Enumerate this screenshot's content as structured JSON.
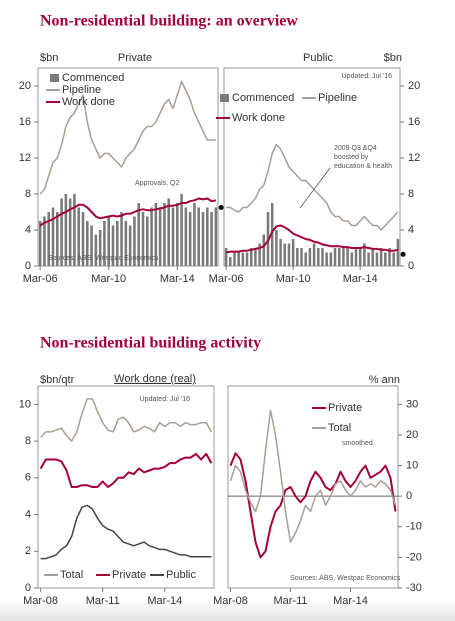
{
  "headings": [
    "Non-residential building: an overview",
    "Non-residential building activity"
  ],
  "chart_data": [
    {
      "type": "combo",
      "title": "Private",
      "y_label": "$bn",
      "axis_side": "left",
      "legend": "top-left",
      "source": "Sources: ABS, Westpac Economics",
      "categories": [
        "Mar-06",
        null,
        null,
        null,
        null,
        null,
        null,
        null,
        null,
        null,
        null,
        null,
        null,
        null,
        null,
        null,
        "Mar-10",
        null,
        null,
        null,
        null,
        null,
        null,
        null,
        null,
        null,
        null,
        null,
        null,
        null,
        null,
        null,
        "Mar-14",
        null,
        null,
        null,
        null,
        null,
        null,
        null,
        null,
        null
      ],
      "series": [
        {
          "name": "Commenced",
          "kind": "bar",
          "color": "#7a7a7a",
          "values": [
            5,
            5.5,
            6,
            6.5,
            6,
            7.5,
            8,
            7.5,
            8,
            6.5,
            6,
            5,
            4.5,
            3.5,
            4,
            5,
            5.5,
            4.5,
            5,
            6,
            5,
            4.5,
            5.5,
            7,
            6,
            5.5,
            6.5,
            7,
            6.5,
            7,
            7.5,
            6.5,
            7,
            8,
            6.5,
            6,
            7,
            6.5,
            6,
            6.5,
            6,
            6.5
          ]
        },
        {
          "name": "Pipeline",
          "kind": "line",
          "color": "#a89f94",
          "values": [
            8,
            8.5,
            10,
            11.5,
            12,
            13.5,
            15.5,
            16.5,
            17,
            18,
            19,
            16,
            14,
            13,
            12,
            12.5,
            12.5,
            12,
            11.5,
            11,
            12,
            12.5,
            13,
            14,
            15,
            15.5,
            15.5,
            16,
            17,
            18,
            18.5,
            17.5,
            19,
            20.5,
            19.5,
            18.5,
            17,
            16,
            15,
            14,
            14,
            14
          ]
        },
        {
          "name": "Work done",
          "kind": "line",
          "color": "#a3003c",
          "values": [
            4.5,
            4.8,
            5,
            5.2,
            5.5,
            5.8,
            6,
            6.3,
            6.5,
            6.8,
            6.8,
            6.5,
            6,
            5.5,
            5.3,
            5.4,
            5.5,
            5.6,
            5.5,
            5.6,
            5.8,
            5.8,
            6,
            6.2,
            6.3,
            6.2,
            6.2,
            6.3,
            6.4,
            6.5,
            6.7,
            6.7,
            6.8,
            7,
            7,
            7.2,
            7.3,
            7.5,
            7.4,
            7.5,
            7.2,
            7.3
          ]
        }
      ],
      "annotations": [
        {
          "text": [
            "Approvals, Q2"
          ],
          "value": 6.5
        }
      ],
      "ylim": [
        0,
        22
      ],
      "yticks": [
        0,
        4,
        8,
        12,
        16,
        20
      ]
    },
    {
      "type": "combo",
      "title": "Public",
      "y_label": "$bn",
      "axis_side": "right",
      "legend": "top",
      "note": "Updated: Jul '16",
      "categories": [
        "Mar-06",
        null,
        null,
        null,
        null,
        null,
        null,
        null,
        null,
        null,
        null,
        null,
        null,
        null,
        null,
        null,
        "Mar-10",
        null,
        null,
        null,
        null,
        null,
        null,
        null,
        null,
        null,
        null,
        null,
        null,
        null,
        null,
        null,
        "Mar-14",
        null,
        null,
        null,
        null,
        null,
        null,
        null,
        null,
        null
      ],
      "series": [
        {
          "name": "Commenced",
          "kind": "bar",
          "color": "#7a7a7a",
          "values": [
            2,
            1,
            1.5,
            1.5,
            1.5,
            1.5,
            2,
            2,
            2.5,
            3.5,
            6,
            7,
            4,
            3,
            2.5,
            2.5,
            3,
            2,
            2,
            1.5,
            2,
            2.5,
            2,
            2,
            1.5,
            1.5,
            2,
            2,
            2,
            2,
            1.5,
            2,
            2,
            2.5,
            1.5,
            2,
            1.5,
            2,
            1.5,
            2,
            1.5,
            3
          ]
        },
        {
          "name": "Pipeline",
          "kind": "line",
          "color": "#a89f94",
          "values": [
            6.5,
            6.5,
            6.2,
            6,
            6.5,
            6.5,
            7,
            7.5,
            8.5,
            9,
            10.5,
            12.5,
            13.5,
            13,
            12,
            11,
            10.5,
            10,
            9.5,
            9.5,
            9,
            8.5,
            8,
            7.5,
            7,
            6,
            5.5,
            5.5,
            5,
            5,
            4.5,
            4.5,
            5,
            5.5,
            5,
            4.5,
            4.5,
            4,
            4.5,
            5,
            5.5,
            6
          ]
        },
        {
          "name": "Work done",
          "kind": "line",
          "color": "#a3003c",
          "values": [
            1.5,
            1.6,
            1.6,
            1.6,
            1.7,
            1.7,
            1.8,
            1.9,
            2,
            2.2,
            2.8,
            3.8,
            4.4,
            4.5,
            4.3,
            4,
            3.6,
            3.4,
            3.2,
            3,
            2.9,
            2.7,
            2.6,
            2.4,
            2.3,
            2.2,
            2.2,
            2.2,
            2.1,
            2.1,
            2,
            2,
            2,
            2.1,
            2,
            1.9,
            1.9,
            1.8,
            1.8,
            1.7,
            1.7,
            1.8
          ]
        }
      ],
      "annotations": [
        {
          "text": [
            "2009 Q3 &Q4",
            "boosted by",
            "education & health"
          ]
        },
        {
          "value": 1.3
        }
      ],
      "ylim": [
        0,
        22
      ],
      "yticks": [
        0,
        4,
        8,
        12,
        16,
        20
      ]
    },
    {
      "type": "line",
      "title": "Work done (real)",
      "y_label": "$bn/qtr",
      "axis_side": "left",
      "legend": "bottom",
      "note": "Updated: Jul '16",
      "categories": [
        "Mar-08",
        null,
        null,
        null,
        null,
        null,
        null,
        null,
        null,
        null,
        null,
        null,
        "Mar-11",
        null,
        null,
        null,
        null,
        null,
        null,
        null,
        null,
        null,
        null,
        null,
        "Mar-14",
        null,
        null,
        null,
        null,
        null,
        null,
        null,
        null,
        null
      ],
      "series": [
        {
          "name": "Total",
          "kind": "line",
          "color": "#a89f94",
          "values": [
            8.2,
            8.5,
            8.5,
            8.6,
            8.7,
            8.3,
            8,
            8.5,
            9.5,
            10.3,
            10.3,
            9.6,
            9,
            8.6,
            8.5,
            9.2,
            9.3,
            9,
            8.5,
            8.6,
            8.8,
            8.7,
            8.5,
            9,
            8.8,
            9,
            9,
            8.8,
            9,
            8.9,
            8.9,
            9,
            9,
            8.5
          ]
        },
        {
          "name": "Private",
          "kind": "line",
          "color": "#a3003c",
          "values": [
            6.5,
            7,
            7,
            7,
            6.9,
            6.4,
            5.5,
            5.5,
            5.6,
            5.6,
            5.5,
            5.5,
            5.8,
            5.5,
            5.7,
            6,
            6,
            6.3,
            6.2,
            6.5,
            6.3,
            6.4,
            6.5,
            6.5,
            6.6,
            6.8,
            6.8,
            7,
            7.1,
            7.1,
            7.3,
            7,
            7.3,
            6.8
          ]
        },
        {
          "name": "Public",
          "kind": "line",
          "color": "#444444",
          "values": [
            1.6,
            1.6,
            1.7,
            1.8,
            2.1,
            2.3,
            2.8,
            3.8,
            4.4,
            4.5,
            4.3,
            3.8,
            3.4,
            3.2,
            3.1,
            2.8,
            2.5,
            2.4,
            2.3,
            2.4,
            2.5,
            2.3,
            2.2,
            2.1,
            2.1,
            2,
            1.9,
            1.8,
            1.8,
            1.7,
            1.7,
            1.7,
            1.7,
            1.7
          ]
        }
      ],
      "ylim": [
        0,
        11
      ],
      "yticks": [
        0,
        2,
        4,
        6,
        8,
        10
      ]
    },
    {
      "type": "line",
      "y_label": "% ann",
      "axis_side": "right",
      "legend": "top-right",
      "zero_line": true,
      "note": "smoothed",
      "source": "Sources: ABS, Westpac Economics",
      "categories": [
        "Mar-08",
        null,
        null,
        null,
        null,
        null,
        null,
        null,
        null,
        null,
        null,
        null,
        "Mar-11",
        null,
        null,
        null,
        null,
        null,
        null,
        null,
        null,
        null,
        null,
        null,
        "Mar-14",
        null,
        null,
        null,
        null,
        null,
        null,
        null,
        null,
        null
      ],
      "series": [
        {
          "name": "Private",
          "kind": "line",
          "color": "#a3003c",
          "values": [
            10,
            14,
            12,
            5,
            -5,
            -15,
            -20,
            -18,
            -10,
            -5,
            -3,
            2,
            3,
            0,
            -2,
            0,
            5,
            8,
            6,
            3,
            2,
            4,
            8,
            5,
            3,
            5,
            8,
            10,
            6,
            7,
            8,
            10,
            6,
            -5
          ]
        },
        {
          "name": "Total",
          "kind": "line",
          "color": "#a89f94",
          "values": [
            5,
            10,
            8,
            2,
            -2,
            -5,
            0,
            15,
            28,
            20,
            8,
            -5,
            -15,
            -12,
            -8,
            -3,
            -5,
            0,
            2,
            -3,
            0,
            4,
            5,
            2,
            0,
            2,
            5,
            3,
            4,
            3,
            5,
            4,
            2,
            -3
          ]
        }
      ],
      "ylim": [
        -30,
        36
      ],
      "yticks": [
        -30,
        -20,
        -10,
        0,
        10,
        20,
        30
      ]
    }
  ]
}
